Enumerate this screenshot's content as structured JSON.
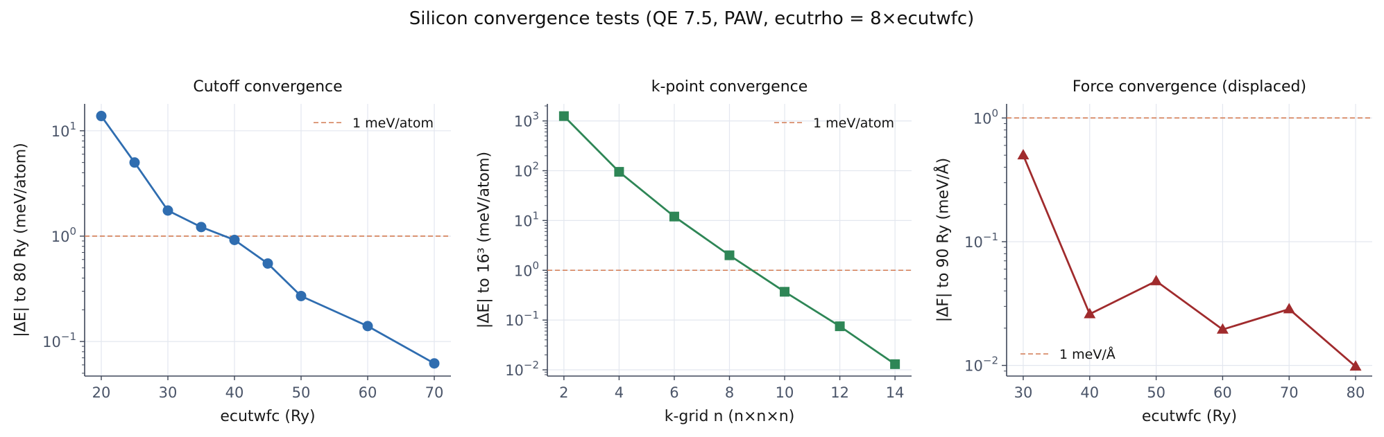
{
  "figure_title": "Silicon convergence tests  (QE 7.5, PAW, ecutrho = 8×ecutwfc)",
  "chart_data": [
    {
      "type": "line",
      "title": "Cutoff convergence",
      "xlabel": "ecutwfc  (Ry)",
      "ylabel": "|ΔE| to 80 Ry  (meV/atom)",
      "yscale": "log",
      "xlim": [
        17.5,
        72.5
      ],
      "ylim": [
        0.047,
        18
      ],
      "xticks": [
        20,
        30,
        40,
        50,
        60,
        70
      ],
      "yticks": [
        0.1,
        1,
        10
      ],
      "ytick_exponents": [
        "−1",
        "0",
        "1"
      ],
      "grid": true,
      "legend_position": "top-right",
      "series": [
        {
          "name": "",
          "color": "#2f6db0",
          "marker": "circle",
          "x": [
            20,
            25,
            30,
            35,
            40,
            45,
            50,
            60,
            70
          ],
          "y": [
            13.8,
            5.0,
            1.75,
            1.22,
            0.92,
            0.55,
            0.27,
            0.14,
            0.062
          ]
        }
      ],
      "reference": {
        "label": "1 meV/atom",
        "y": 1,
        "color": "#d27a52"
      }
    },
    {
      "type": "line",
      "title": "k-point convergence",
      "xlabel": "k-grid  n  (n×n×n)",
      "ylabel": "|ΔE| to 16³  (meV/atom)",
      "yscale": "log",
      "xlim": [
        1.4,
        14.6
      ],
      "ylim": [
        0.0075,
        2200
      ],
      "xticks": [
        2,
        4,
        6,
        8,
        10,
        12,
        14
      ],
      "yticks": [
        0.01,
        0.1,
        1,
        10,
        100,
        1000
      ],
      "ytick_exponents": [
        "−2",
        "−1",
        "0",
        "1",
        "2",
        "3"
      ],
      "grid": true,
      "legend_position": "top-right",
      "series": [
        {
          "name": "",
          "color": "#2e8656",
          "marker": "square",
          "x": [
            2,
            4,
            6,
            8,
            10,
            12,
            14
          ],
          "y": [
            1250,
            95,
            12,
            2.0,
            0.37,
            0.075,
            0.013
          ]
        }
      ],
      "reference": {
        "label": "1 meV/atom",
        "y": 1,
        "color": "#d27a52"
      }
    },
    {
      "type": "line",
      "title": "Force convergence (displaced)",
      "xlabel": "ecutwfc  (Ry)",
      "ylabel": "|ΔF| to 90 Ry  (meV/Å)",
      "yscale": "log",
      "xlim": [
        27.5,
        82.5
      ],
      "ylim": [
        0.0082,
        1.3
      ],
      "xticks": [
        30,
        40,
        50,
        60,
        70,
        80
      ],
      "yticks": [
        0.01,
        0.1,
        1
      ],
      "ytick_exponents": [
        "−2",
        "−1",
        "0"
      ],
      "grid": true,
      "legend_position": "bottom-left",
      "series": [
        {
          "name": "",
          "color": "#a02b2d",
          "marker": "triangle",
          "x": [
            30,
            40,
            50,
            60,
            70,
            80
          ],
          "y": [
            0.5,
            0.026,
            0.048,
            0.0195,
            0.0285,
            0.0098
          ]
        }
      ],
      "reference": {
        "label": "1 meV/Å",
        "y": 1,
        "color": "#d27a52"
      }
    }
  ]
}
